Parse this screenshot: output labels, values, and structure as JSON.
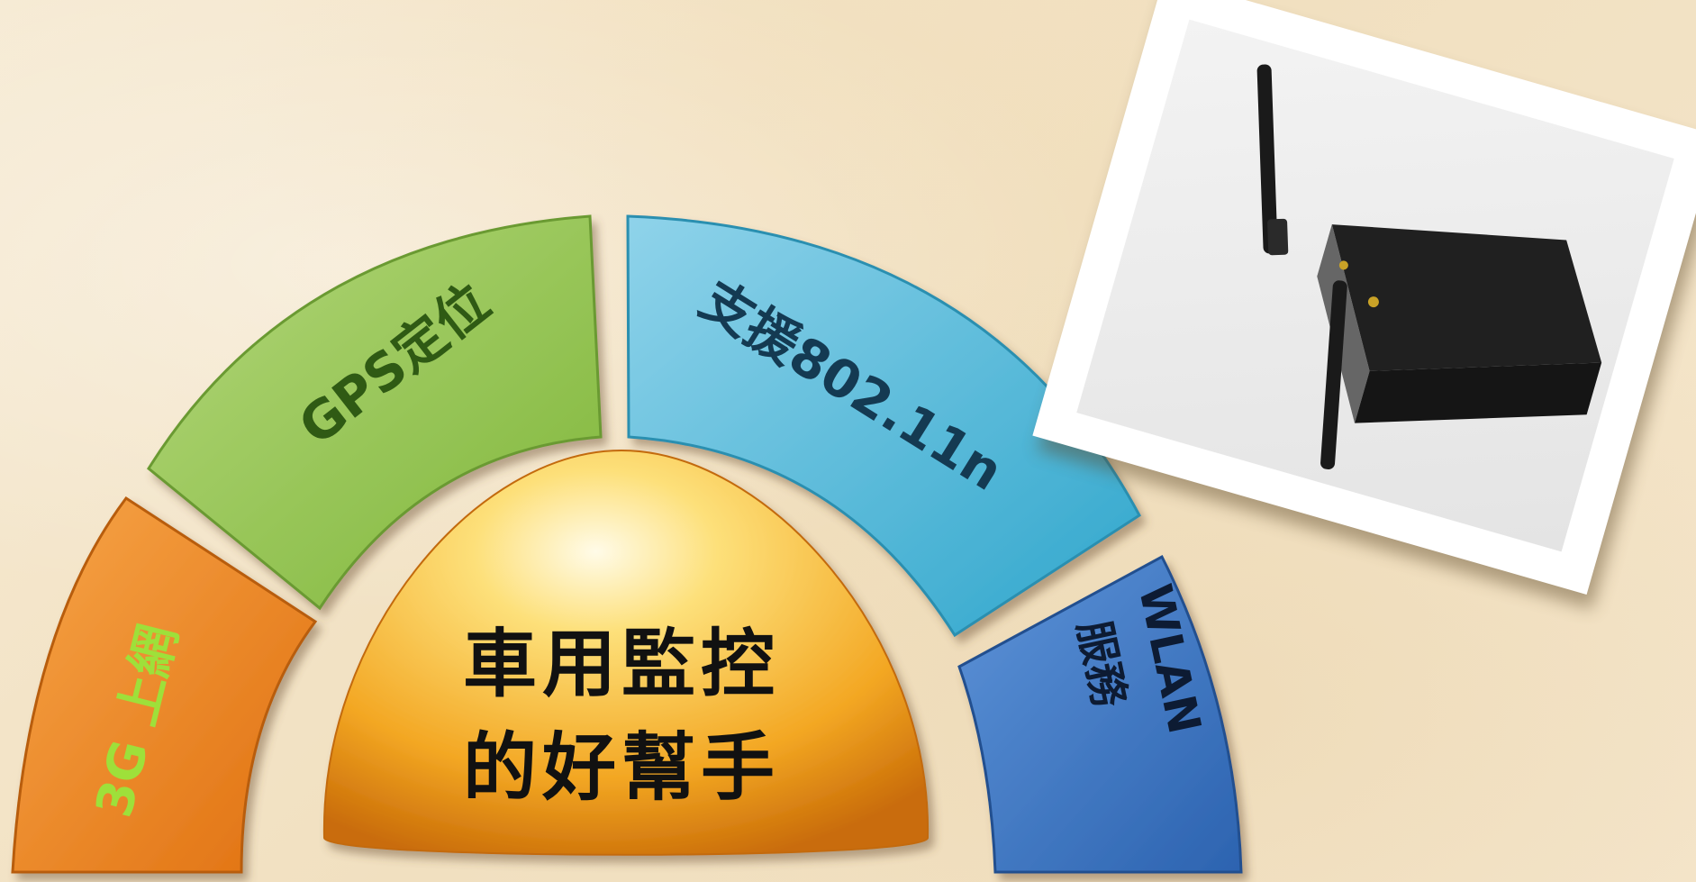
{
  "segments": {
    "seg3g": {
      "line1": "3G 上網",
      "color": "#f08a24"
    },
    "gps": {
      "line1": "GPS定位",
      "color": "#8fc24a"
    },
    "wifi": {
      "line1": "支援802.11n",
      "color": "#3fb4d6"
    },
    "wlan": {
      "line1": "WLAN",
      "line2": "服務",
      "color": "#3c78c8"
    }
  },
  "center": {
    "line1": "車用監控",
    "line2": "的好幫手",
    "color": "#f2a420"
  },
  "photo": {
    "icon": "wireless-router-icon"
  }
}
